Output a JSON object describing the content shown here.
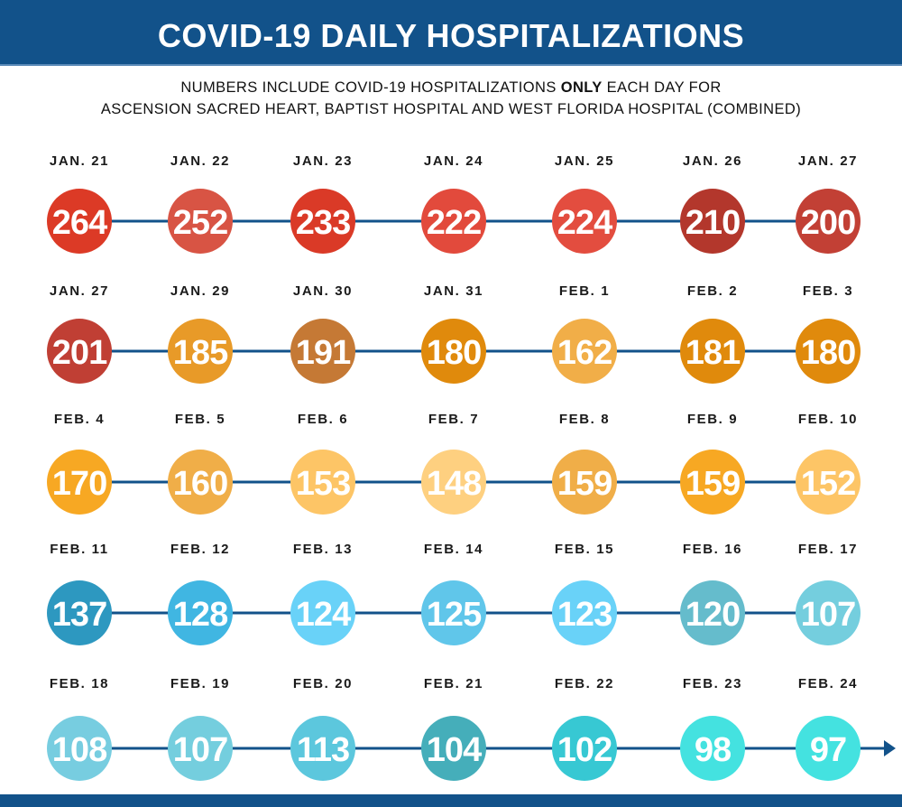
{
  "header": {
    "title": "COVID-19 DAILY HOSPITALIZATIONS",
    "subtitle_line1_pre": "NUMBERS INCLUDE COVID-19 HOSPITALIZATIONS ",
    "subtitle_line1_bold": "ONLY",
    "subtitle_line1_post": " EACH DAY FOR",
    "subtitle_line2": "ASCENSION SACRED HEART, BAPTIST HOSPITAL AND WEST FLORIDA HOSPITAL (COMBINED)"
  },
  "colors": {
    "banner": "#12528a",
    "connector": "#12528a",
    "date_text": "#1a1a1a",
    "value_text": "#ffffff"
  },
  "chart_data": {
    "type": "timeline",
    "title": "COVID-19 DAILY HOSPITALIZATIONS",
    "columns_per_row": 7,
    "points": [
      {
        "date": "JAN. 21",
        "value": 264,
        "color": "#dc3a26"
      },
      {
        "date": "JAN. 22",
        "value": 252,
        "color": "#d85444"
      },
      {
        "date": "JAN. 23",
        "value": 233,
        "color": "#da3a27"
      },
      {
        "date": "JAN. 24",
        "value": 222,
        "color": "#e24a3c"
      },
      {
        "date": "JAN. 25",
        "value": 224,
        "color": "#e34d3f"
      },
      {
        "date": "JAN. 26",
        "value": 210,
        "color": "#b3372c"
      },
      {
        "date": "JAN. 27",
        "value": 200,
        "color": "#c24035"
      },
      {
        "date": "JAN. 27",
        "value": 201,
        "color": "#c03f34"
      },
      {
        "date": "JAN. 29",
        "value": 185,
        "color": "#e89a28"
      },
      {
        "date": "JAN. 30",
        "value": 191,
        "color": "#c57935"
      },
      {
        "date": "JAN. 31",
        "value": 180,
        "color": "#e08a0c"
      },
      {
        "date": "FEB. 1",
        "value": 162,
        "color": "#f1ae48"
      },
      {
        "date": "FEB. 2",
        "value": 181,
        "color": "#e08a0c"
      },
      {
        "date": "FEB. 3",
        "value": 180,
        "color": "#e08a0c"
      },
      {
        "date": "FEB. 4",
        "value": 170,
        "color": "#f7a823"
      },
      {
        "date": "FEB. 5",
        "value": 160,
        "color": "#f0ae48"
      },
      {
        "date": "FEB. 6",
        "value": 153,
        "color": "#fdc566"
      },
      {
        "date": "FEB. 7",
        "value": 148,
        "color": "#fed080"
      },
      {
        "date": "FEB. 8",
        "value": 159,
        "color": "#f0ae48"
      },
      {
        "date": "FEB. 9",
        "value": 159,
        "color": "#f7a823"
      },
      {
        "date": "FEB. 10",
        "value": 152,
        "color": "#fdc566"
      },
      {
        "date": "FEB. 11",
        "value": 137,
        "color": "#2d98c0"
      },
      {
        "date": "FEB. 12",
        "value": 128,
        "color": "#40b6e2"
      },
      {
        "date": "FEB. 13",
        "value": 124,
        "color": "#69d2f8"
      },
      {
        "date": "FEB. 14",
        "value": 125,
        "color": "#60c6ea"
      },
      {
        "date": "FEB. 15",
        "value": 123,
        "color": "#69d2f8"
      },
      {
        "date": "FEB. 16",
        "value": 120,
        "color": "#65bccc"
      },
      {
        "date": "FEB. 17",
        "value": 107,
        "color": "#74cede"
      },
      {
        "date": "FEB. 18",
        "value": 108,
        "color": "#77cde0"
      },
      {
        "date": "FEB. 19",
        "value": 107,
        "color": "#74cede"
      },
      {
        "date": "FEB. 20",
        "value": 113,
        "color": "#5cc7dd"
      },
      {
        "date": "FEB. 21",
        "value": 104,
        "color": "#45aeba"
      },
      {
        "date": "FEB. 22",
        "value": 102,
        "color": "#37c8d3"
      },
      {
        "date": "FEB. 23",
        "value": 98,
        "color": "#44e2e0"
      },
      {
        "date": "FEB. 24",
        "value": 97,
        "color": "#44e2e0"
      }
    ],
    "xlabel": "",
    "ylabel": "",
    "end_marker": "arrow-right"
  }
}
